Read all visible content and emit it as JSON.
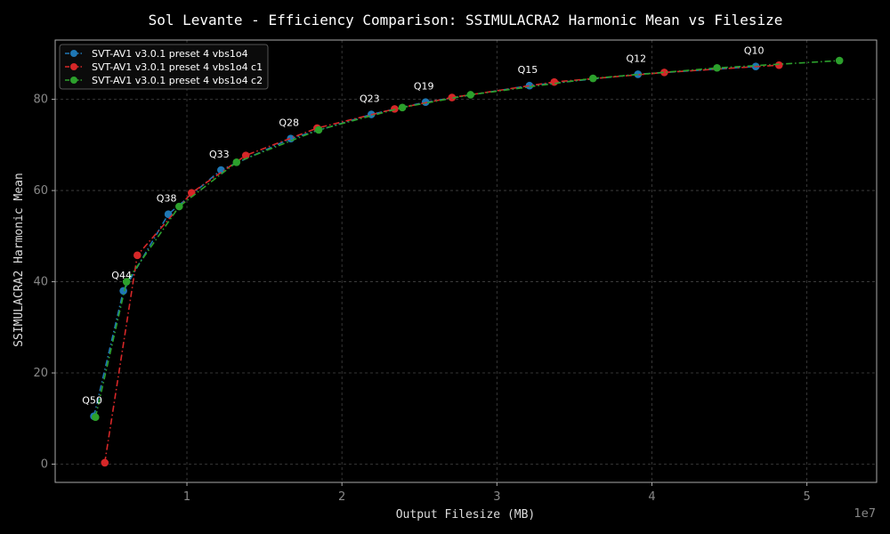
{
  "chart_data": {
    "type": "line",
    "title": "Sol Levante - Efficiency Comparison: SSIMULACRA2 Harmonic Mean vs Filesize",
    "xlabel": "Output Filesize (MB)",
    "ylabel": "SSIMULACRA2 Harmonic Mean",
    "x_offset_label": "1e7",
    "xlim": [
      0.15,
      5.45
    ],
    "ylim": [
      -4,
      93
    ],
    "x_ticks": [
      1,
      2,
      3,
      4,
      5
    ],
    "x_tick_labels": [
      "1",
      "2",
      "3",
      "4",
      "5"
    ],
    "y_ticks": [
      0,
      20,
      40,
      60,
      80
    ],
    "y_tick_labels": [
      "0",
      "20",
      "40",
      "60",
      "80"
    ],
    "grid": true,
    "legend_position": "top-left",
    "series": [
      {
        "name": "SVT-AV1 v3.0.1 preset 4 vbs1o4",
        "color": "#1f77b4",
        "line_style": "dashdot",
        "points": [
          [
            0.4,
            10.5
          ],
          [
            0.59,
            38.0
          ],
          [
            0.88,
            54.8
          ],
          [
            1.22,
            64.5
          ],
          [
            1.67,
            71.4
          ],
          [
            2.19,
            76.7
          ],
          [
            2.54,
            79.4
          ],
          [
            3.21,
            83.0
          ],
          [
            3.91,
            85.5
          ],
          [
            4.67,
            87.2
          ]
        ]
      },
      {
        "name": "SVT-AV1 v3.0.1 preset 4 vbs1o4 c1",
        "color": "#d62728",
        "line_style": "dashdot",
        "points": [
          [
            0.47,
            0.3
          ],
          [
            0.68,
            45.8
          ],
          [
            1.03,
            59.5
          ],
          [
            1.38,
            67.7
          ],
          [
            1.84,
            73.7
          ],
          [
            2.34,
            77.9
          ],
          [
            2.71,
            80.4
          ],
          [
            3.37,
            83.8
          ],
          [
            4.08,
            85.9
          ],
          [
            4.82,
            87.5
          ]
        ]
      },
      {
        "name": "SVT-AV1 v3.0.1 preset 4 vbs1o4 c2",
        "color": "#2ca02c",
        "line_style": "dashdot",
        "points": [
          [
            0.41,
            10.3
          ],
          [
            0.61,
            40.0
          ],
          [
            0.95,
            56.5
          ],
          [
            1.32,
            66.2
          ],
          [
            1.85,
            73.3
          ],
          [
            2.39,
            78.2
          ],
          [
            2.83,
            81.0
          ],
          [
            3.62,
            84.6
          ],
          [
            4.42,
            86.9
          ],
          [
            5.21,
            88.5
          ]
        ]
      }
    ],
    "annotations": [
      {
        "text": "Q50",
        "x": 0.4,
        "y": 10.5
      },
      {
        "text": "Q44",
        "x": 0.59,
        "y": 38.0
      },
      {
        "text": "Q38",
        "x": 0.88,
        "y": 54.8
      },
      {
        "text": "Q33",
        "x": 1.22,
        "y": 64.5
      },
      {
        "text": "Q28",
        "x": 1.67,
        "y": 71.4
      },
      {
        "text": "Q23",
        "x": 2.19,
        "y": 76.7
      },
      {
        "text": "Q19",
        "x": 2.54,
        "y": 79.4
      },
      {
        "text": "Q15",
        "x": 3.21,
        "y": 83.0
      },
      {
        "text": "Q12",
        "x": 3.91,
        "y": 85.5
      },
      {
        "text": "Q10",
        "x": 4.67,
        "y": 87.2
      }
    ]
  }
}
